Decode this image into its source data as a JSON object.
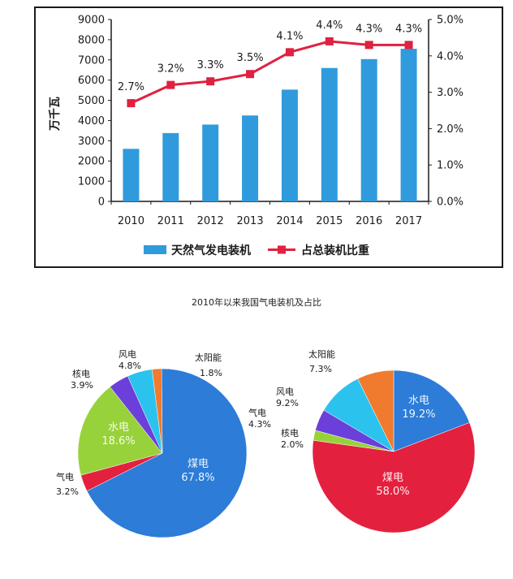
{
  "colors": {
    "bar": "#2f9bdc",
    "line": "#e0213f",
    "coal": "#2c7cd8",
    "hydro_left": "#98d23a",
    "hydro_right": "#2c7cd8",
    "coal_right": "#e4203f",
    "gas": "#e4203f",
    "nuclear": "#6b3fd9",
    "wind": "#2cc2ee",
    "solar": "#f07a2e"
  },
  "chart_data": [
    {
      "type": "bar",
      "categories": [
        "2010",
        "2011",
        "2012",
        "2013",
        "2014",
        "2015",
        "2016",
        "2017"
      ],
      "series": [
        {
          "name": "天然气发电装机",
          "type": "bar",
          "axis": "left",
          "values": [
            2600,
            3380,
            3800,
            4250,
            5530,
            6600,
            7040,
            7550
          ]
        },
        {
          "name": "占总装机比重",
          "type": "line",
          "axis": "right",
          "unit": "%",
          "values": [
            2.7,
            3.2,
            3.3,
            3.5,
            4.1,
            4.4,
            4.3,
            4.3
          ],
          "labels": [
            "2.7%",
            "3.2%",
            "3.3%",
            "3.5%",
            "4.1%",
            "4.4%",
            "4.3%",
            "4.3%"
          ]
        }
      ],
      "ylabel": "万千瓦",
      "ylim": [
        0,
        9000
      ],
      "yticks": [
        "0",
        "1000",
        "2000",
        "3000",
        "4000",
        "5000",
        "6000",
        "7000",
        "8000",
        "9000"
      ],
      "y2lim": [
        0,
        5
      ],
      "y2ticks": [
        "0.0%",
        "1.0%",
        "2.0%",
        "3.0%",
        "4.0%",
        "5.0%"
      ],
      "legend_position": "bottom"
    },
    {
      "type": "pie",
      "slices": [
        {
          "name": "煤电",
          "value": 67.8,
          "label": "67.8%",
          "color_key": "coal"
        },
        {
          "name": "气电",
          "value": 3.2,
          "label": "3.2%",
          "color_key": "gas"
        },
        {
          "name": "水电",
          "value": 18.6,
          "label": "18.6%",
          "color_key": "hydro_left"
        },
        {
          "name": "核电",
          "value": 3.9,
          "label": "3.9%",
          "color_key": "nuclear"
        },
        {
          "name": "风电",
          "value": 4.8,
          "label": "4.8%",
          "color_key": "wind"
        },
        {
          "name": "太阳能",
          "value": 1.8,
          "label": "1.8%",
          "color_key": "solar"
        }
      ]
    },
    {
      "type": "pie",
      "slices": [
        {
          "name": "水电",
          "value": 19.2,
          "label": "19.2%",
          "color_key": "hydro_right"
        },
        {
          "name": "煤电",
          "value": 58.0,
          "label": "58.0%",
          "color_key": "coal_right"
        },
        {
          "name": "核电",
          "value": 2.0,
          "label": "2.0%",
          "color_key": "hydro_left"
        },
        {
          "name": "气电",
          "value": 4.3,
          "label": "4.3%",
          "color_key": "nuclear"
        },
        {
          "name": "风电",
          "value": 9.2,
          "label": "9.2%",
          "color_key": "wind"
        },
        {
          "name": "太阳能",
          "value": 7.3,
          "label": "7.3%",
          "color_key": "solar"
        }
      ]
    }
  ],
  "caption": "2010年以来我国气电装机及占比"
}
